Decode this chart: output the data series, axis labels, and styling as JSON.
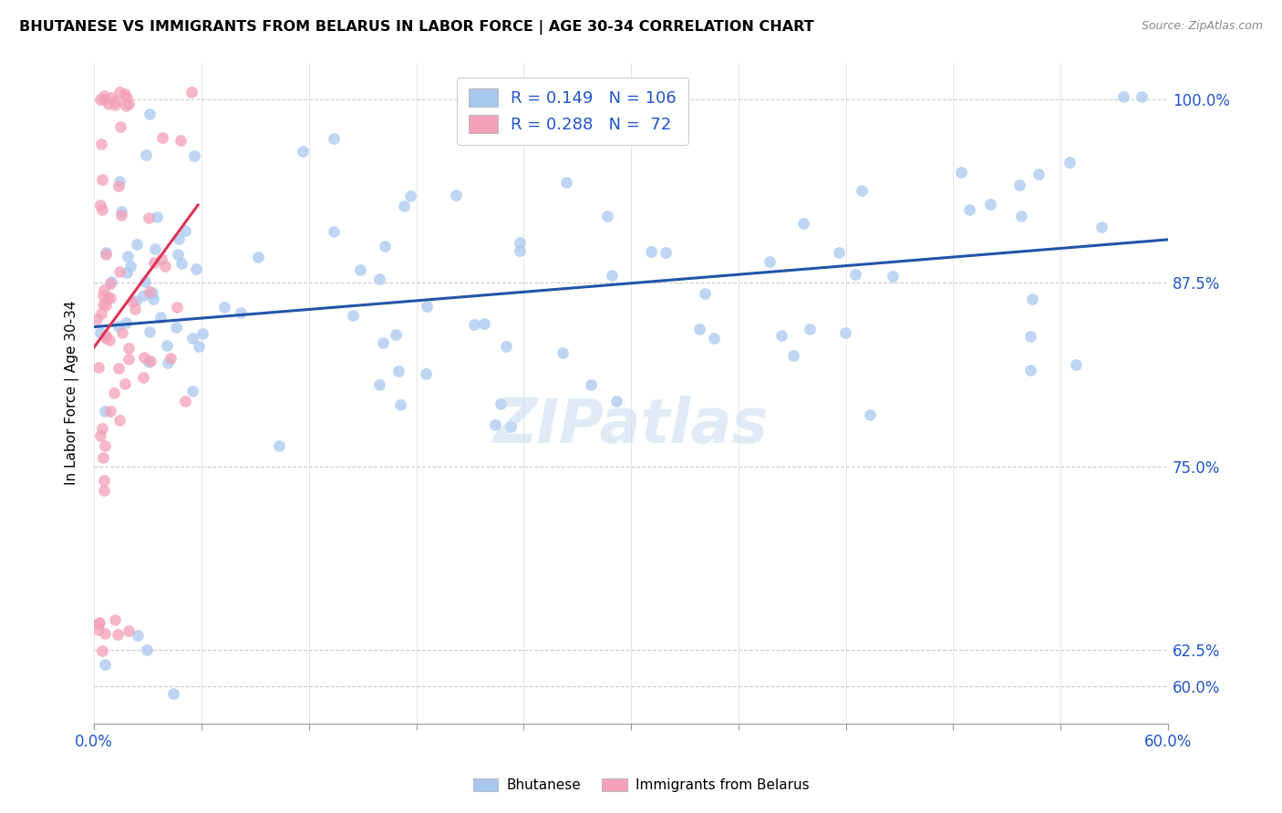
{
  "title": "BHUTANESE VS IMMIGRANTS FROM BELARUS IN LABOR FORCE | AGE 30-34 CORRELATION CHART",
  "source": "Source: ZipAtlas.com",
  "ylabel": "In Labor Force | Age 30-34",
  "xlim": [
    0.0,
    0.6
  ],
  "ylim": [
    0.575,
    1.025
  ],
  "yticks_right": [
    0.6,
    0.625,
    0.75,
    0.875,
    1.0
  ],
  "ytick_right_labels": [
    "60.0%",
    "62.5%",
    "75.0%",
    "87.5%",
    "100.0%"
  ],
  "blue_R": 0.149,
  "blue_N": 106,
  "pink_R": 0.288,
  "pink_N": 72,
  "blue_color": "#A8C8F0",
  "pink_color": "#F4A0B8",
  "blue_line_color": "#2255AA",
  "pink_line_color": "#DD3355",
  "legend_label_blue": "Bhutanese",
  "legend_label_pink": "Immigrants from Belarus",
  "watermark": "ZIPatlas"
}
